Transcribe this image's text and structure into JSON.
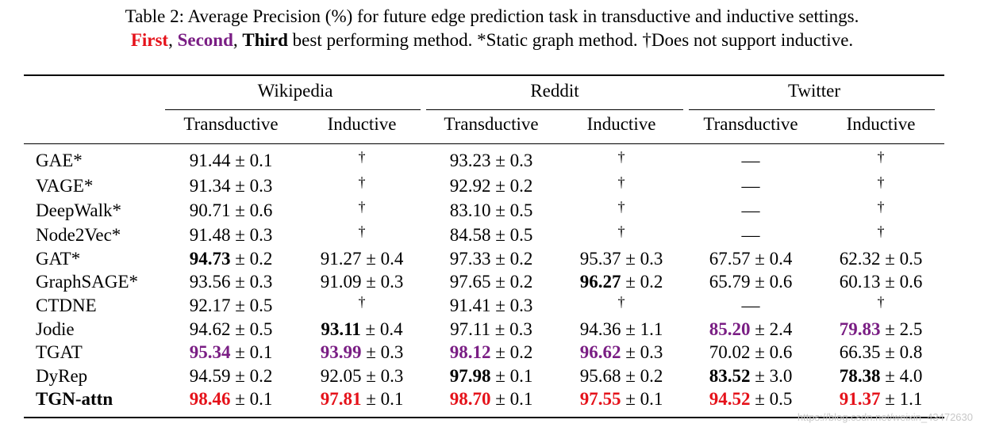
{
  "caption": {
    "line1": "Table 2: Average Precision (%) for future edge prediction task in transductive and inductive settings.",
    "first": "First",
    "sep1": ",",
    "second": "Second",
    "sep2": ",",
    "third": "Third",
    "rest": "best performing method. *Static graph method. †Does not support inductive."
  },
  "colors": {
    "first": "#e5121a",
    "second": "#7a1e84",
    "third": "#000000"
  },
  "groups": [
    "Wikipedia",
    "Reddit",
    "Twitter"
  ],
  "subheaders": [
    "Transductive",
    "Inductive",
    "Transductive",
    "Inductive",
    "Transductive",
    "Inductive"
  ],
  "rows": [
    {
      "name": "GAE*",
      "cells": [
        [
          "91.44",
          "0.1",
          ""
        ],
        [
          "†",
          "",
          ""
        ],
        [
          "93.23",
          "0.3",
          ""
        ],
        [
          "†",
          "",
          ""
        ],
        [
          "—",
          "",
          ""
        ],
        [
          "†",
          "",
          ""
        ]
      ]
    },
    {
      "name": "VAGE*",
      "cells": [
        [
          "91.34",
          "0.3",
          ""
        ],
        [
          "†",
          "",
          ""
        ],
        [
          "92.92",
          "0.2",
          ""
        ],
        [
          "†",
          "",
          ""
        ],
        [
          "—",
          "",
          ""
        ],
        [
          "†",
          "",
          ""
        ]
      ]
    },
    {
      "name": "DeepWalk*",
      "cells": [
        [
          "90.71",
          "0.6",
          ""
        ],
        [
          "†",
          "",
          ""
        ],
        [
          "83.10",
          "0.5",
          ""
        ],
        [
          "†",
          "",
          ""
        ],
        [
          "—",
          "",
          ""
        ],
        [
          "†",
          "",
          ""
        ]
      ]
    },
    {
      "name": "Node2Vec*",
      "cells": [
        [
          "91.48",
          "0.3",
          ""
        ],
        [
          "†",
          "",
          ""
        ],
        [
          "84.58",
          "0.5",
          ""
        ],
        [
          "†",
          "",
          ""
        ],
        [
          "—",
          "",
          ""
        ],
        [
          "†",
          "",
          ""
        ]
      ]
    },
    {
      "name": "GAT*",
      "cells": [
        [
          "94.73",
          "0.2",
          "third"
        ],
        [
          "91.27",
          "0.4",
          ""
        ],
        [
          "97.33",
          "0.2",
          ""
        ],
        [
          "95.37",
          "0.3",
          ""
        ],
        [
          "67.57",
          "0.4",
          ""
        ],
        [
          "62.32",
          "0.5",
          ""
        ]
      ]
    },
    {
      "name": "GraphSAGE*",
      "cells": [
        [
          "93.56",
          "0.3",
          ""
        ],
        [
          "91.09",
          "0.3",
          ""
        ],
        [
          "97.65",
          "0.2",
          ""
        ],
        [
          "96.27",
          "0.2",
          "third"
        ],
        [
          "65.79",
          "0.6",
          ""
        ],
        [
          "60.13",
          "0.6",
          ""
        ]
      ]
    },
    {
      "name": "CTDNE",
      "cells": [
        [
          "92.17",
          "0.5",
          ""
        ],
        [
          "†",
          "",
          ""
        ],
        [
          "91.41",
          "0.3",
          ""
        ],
        [
          "†",
          "",
          ""
        ],
        [
          "—",
          "",
          ""
        ],
        [
          "†",
          "",
          ""
        ]
      ]
    },
    {
      "name": "Jodie",
      "cells": [
        [
          "94.62",
          "0.5",
          ""
        ],
        [
          "93.11",
          "0.4",
          "third"
        ],
        [
          "97.11",
          "0.3",
          ""
        ],
        [
          "94.36",
          "1.1",
          ""
        ],
        [
          "85.20",
          "2.4",
          "second"
        ],
        [
          "79.83",
          "2.5",
          "second"
        ]
      ]
    },
    {
      "name": "TGAT",
      "cells": [
        [
          "95.34",
          "0.1",
          "second"
        ],
        [
          "93.99",
          "0.3",
          "second"
        ],
        [
          "98.12",
          "0.2",
          "second"
        ],
        [
          "96.62",
          "0.3",
          "second"
        ],
        [
          "70.02",
          "0.6",
          ""
        ],
        [
          "66.35",
          "0.8",
          ""
        ]
      ]
    },
    {
      "name": "DyRep",
      "cells": [
        [
          "94.59",
          "0.2",
          ""
        ],
        [
          "92.05",
          "0.3",
          ""
        ],
        [
          "97.98",
          "0.1",
          "third"
        ],
        [
          "95.68",
          "0.2",
          ""
        ],
        [
          "83.52",
          "3.0",
          "third"
        ],
        [
          "78.38",
          "4.0",
          "third"
        ]
      ]
    },
    {
      "name": "TGN-attn",
      "bold": true,
      "cells": [
        [
          "98.46",
          "0.1",
          "first"
        ],
        [
          "97.81",
          "0.1",
          "first"
        ],
        [
          "98.70",
          "0.1",
          "first"
        ],
        [
          "97.55",
          "0.1",
          "first"
        ],
        [
          "94.52",
          "0.5",
          "first"
        ],
        [
          "91.37",
          "1.1",
          "first"
        ]
      ]
    }
  ],
  "watermark": "https://blog.csdn.net/weixin_43472630"
}
